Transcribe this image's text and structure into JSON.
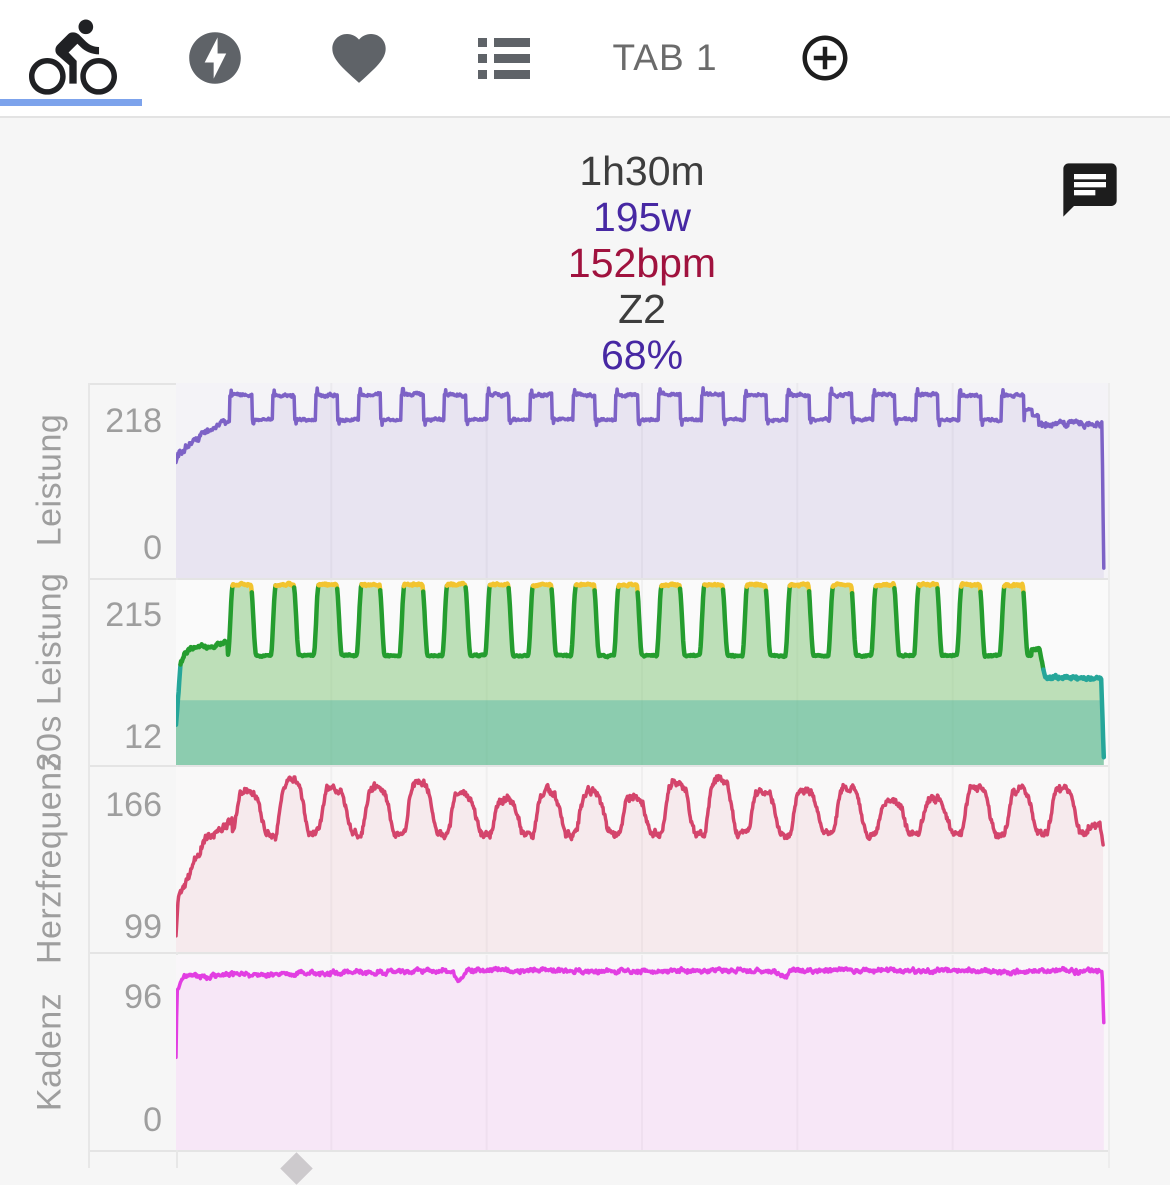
{
  "tab_bar": {
    "active_underline_color": "#7da3ec",
    "tabs": [
      {
        "id": "ride",
        "icon": "cyclist-icon",
        "active": true
      },
      {
        "id": "power",
        "icon": "lightning-bolt-icon",
        "active": false
      },
      {
        "id": "heart",
        "icon": "heart-icon",
        "active": false
      },
      {
        "id": "list",
        "icon": "list-icon",
        "active": false
      },
      {
        "id": "tab1",
        "label": "TAB 1",
        "active": false
      },
      {
        "id": "add",
        "icon": "add-circle-icon",
        "active": false
      }
    ]
  },
  "summary": {
    "lines": [
      {
        "text": "1h30m",
        "color": "#3d3d3d"
      },
      {
        "text": "195w",
        "color": "#4728a3"
      },
      {
        "text": "152bpm",
        "color": "#a0123e"
      },
      {
        "text": "Z2",
        "color": "#3d3d3d"
      },
      {
        "text": "68%",
        "color": "#4728a3"
      }
    ]
  },
  "comment_icon": "chat-bubble-icon",
  "chart_data": [
    {
      "type": "area",
      "ylabel": "Leistung",
      "unit": "w",
      "yticks": [
        "218",
        "0"
      ],
      "ylim": [
        0,
        245
      ],
      "x_minutes": 90,
      "t_end": 89.6,
      "grid": "faint-vertical",
      "line_color": "#7d62c6",
      "fill_color": "rgba(125,98,198,0.10)",
      "line_width": 3.5,
      "zones": [
        {
          "max": 9999,
          "color": "#7d62c6"
        }
      ],
      "phases": [
        {
          "type": "ramp",
          "t0": 0,
          "t1": 0.3,
          "v0": 146,
          "v1": 160,
          "noise": 6
        },
        {
          "type": "ramp",
          "t0": 0.3,
          "t1": 2.5,
          "v0": 160,
          "v1": 180,
          "noise": 5
        },
        {
          "type": "ramp",
          "t0": 2.5,
          "t1": 5.2,
          "v0": 181,
          "v1": 200,
          "noise": 4
        },
        {
          "type": "intervals",
          "t0": 5.2,
          "t1": 81.95,
          "rise": 0.12,
          "high_dur": 2.0,
          "fall": 0.12,
          "low_dur": 1.9,
          "high": 230,
          "low": 199,
          "noise_high": 2.2,
          "noise_low": 1.8,
          "spike": 7,
          "shape": "square"
        },
        {
          "type": "flat",
          "t0": 81.95,
          "t1": 82.7,
          "v": 211,
          "noise": 1.5
        },
        {
          "type": "flat",
          "t0": 82.7,
          "t1": 83.3,
          "v": 204,
          "noise": 1.5
        },
        {
          "type": "flat",
          "t0": 83.3,
          "t1": 89.42,
          "v": 193,
          "noise": 4
        },
        {
          "type": "ramp",
          "t0": 89.42,
          "t1": 89.6,
          "v0": 190,
          "v1": 2,
          "noise": 0
        }
      ]
    },
    {
      "type": "area",
      "ylabel": "30s Leistung",
      "unit": "w",
      "yticks": [
        "215",
        "12"
      ],
      "ylim": [
        0,
        240
      ],
      "x_minutes": 90,
      "t_end": 89.6,
      "grid": "faint-vertical",
      "line_color": "#259d2f",
      "fill_color": "rgba(104,186,94,0.42)",
      "line_width": 4.5,
      "band": {
        "from": 0,
        "to": 84,
        "color": "rgba(38,166,154,0.32)"
      },
      "zones": [
        {
          "max": 124,
          "color": "#26a69a"
        },
        {
          "max": 230.5,
          "color": "#259d2f"
        },
        {
          "max": 9999,
          "color": "#f2c430"
        }
      ],
      "phases": [
        {
          "type": "ramp",
          "t0": 0,
          "t1": 0.45,
          "v0": 52,
          "v1": 135,
          "noise": 3
        },
        {
          "type": "ramp",
          "t0": 0.45,
          "t1": 1.2,
          "v0": 135,
          "v1": 150,
          "noise": 3
        },
        {
          "type": "ramp",
          "t0": 1.2,
          "t1": 5.0,
          "v0": 150,
          "v1": 158,
          "noise": 2.5
        },
        {
          "type": "intervals",
          "t0": 5.0,
          "t1": 82.6,
          "rise": 0.5,
          "high_dur": 1.7,
          "fall": 0.55,
          "low_dur": 1.39,
          "high": 234,
          "low": 142,
          "noise_high": 1.6,
          "noise_low": 1.2,
          "spike": 0,
          "shape": "trap"
        },
        {
          "type": "flat",
          "t0": 82.6,
          "t1": 83.4,
          "v": 150,
          "noise": 2
        },
        {
          "type": "ramp",
          "t0": 83.4,
          "t1": 83.9,
          "v0": 150,
          "v1": 116,
          "noise": 1.5
        },
        {
          "type": "flat",
          "t0": 83.9,
          "t1": 89.35,
          "v": 113,
          "noise": 2.5
        },
        {
          "type": "ramp",
          "t0": 89.35,
          "t1": 89.6,
          "v0": 110,
          "v1": 6,
          "noise": 0
        }
      ]
    },
    {
      "type": "area",
      "ylabel": "Herzfrequenz",
      "unit": "bpm",
      "yticks": [
        "166",
        "99"
      ],
      "ylim": [
        88,
        182
      ],
      "x_minutes": 90,
      "t_end": 89.58,
      "grid": "faint-vertical",
      "line_color": "#d4456c",
      "fill_color": "rgba(212,69,108,0.075)",
      "line_width": 3.5,
      "zones": [
        {
          "max": 9999,
          "color": "#d4456c"
        }
      ],
      "phases": [
        {
          "type": "ramp",
          "t0": 0,
          "t1": 0.22,
          "v0": 95,
          "v1": 117,
          "noise": 1.5
        },
        {
          "type": "ramp",
          "t0": 0.22,
          "t1": 1.3,
          "v0": 117,
          "v1": 127,
          "noise": 2
        },
        {
          "type": "ramp",
          "t0": 1.3,
          "t1": 3.2,
          "v0": 127,
          "v1": 149,
          "noise": 2.2
        },
        {
          "type": "ramp",
          "t0": 3.2,
          "t1": 5.4,
          "v0": 147,
          "v1": 153,
          "noise": 2.5
        },
        {
          "type": "intervals",
          "t0": 5.4,
          "t1": 88.1,
          "rise": 0.95,
          "high_dur": 1.15,
          "fall": 1.35,
          "low_dur": 0.69,
          "high": 169,
          "low": 148,
          "noise_high": 2.0,
          "noise_low": 2.0,
          "spike": 0,
          "shape": "hr",
          "high_var": 6
        },
        {
          "type": "flat",
          "t0": 88.1,
          "t1": 89.25,
          "v": 152,
          "noise": 2
        },
        {
          "type": "ramp",
          "t0": 89.25,
          "t1": 89.58,
          "v0": 151,
          "v1": 141,
          "noise": 1
        }
      ]
    },
    {
      "type": "area",
      "ylabel": "Kadenz",
      "unit": "rpm",
      "yticks": [
        "96",
        "0"
      ],
      "ylim": [
        0,
        110
      ],
      "x_minutes": 90,
      "t_end": 89.6,
      "grid": "faint-vertical",
      "line_color": "#e23ee2",
      "fill_color": "rgba(226,62,226,0.08)",
      "line_width": 3.5,
      "zones": [
        {
          "max": 9999,
          "color": "#e23ee2"
        }
      ],
      "events": [
        {
          "t": 27.3,
          "dv": -5,
          "w": 0.5
        },
        {
          "t": 58.8,
          "dv": -4,
          "w": 0.45
        }
      ],
      "phases": [
        {
          "type": "ramp",
          "t0": 0,
          "t1": 0.1,
          "v0": 52,
          "v1": 90,
          "noise": 1
        },
        {
          "type": "ramp",
          "t0": 0.1,
          "t1": 0.7,
          "v0": 90,
          "v1": 97,
          "noise": 1.2
        },
        {
          "type": "ramp",
          "t0": 0.7,
          "t1": 25,
          "v0": 98,
          "v1": 101,
          "noise": 1.3
        },
        {
          "type": "flat",
          "t0": 25,
          "t1": 89.45,
          "v": 101,
          "noise": 1.3
        },
        {
          "type": "ramp",
          "t0": 89.45,
          "t1": 89.6,
          "v0": 98,
          "v1": 70,
          "noise": 0
        }
      ]
    }
  ]
}
